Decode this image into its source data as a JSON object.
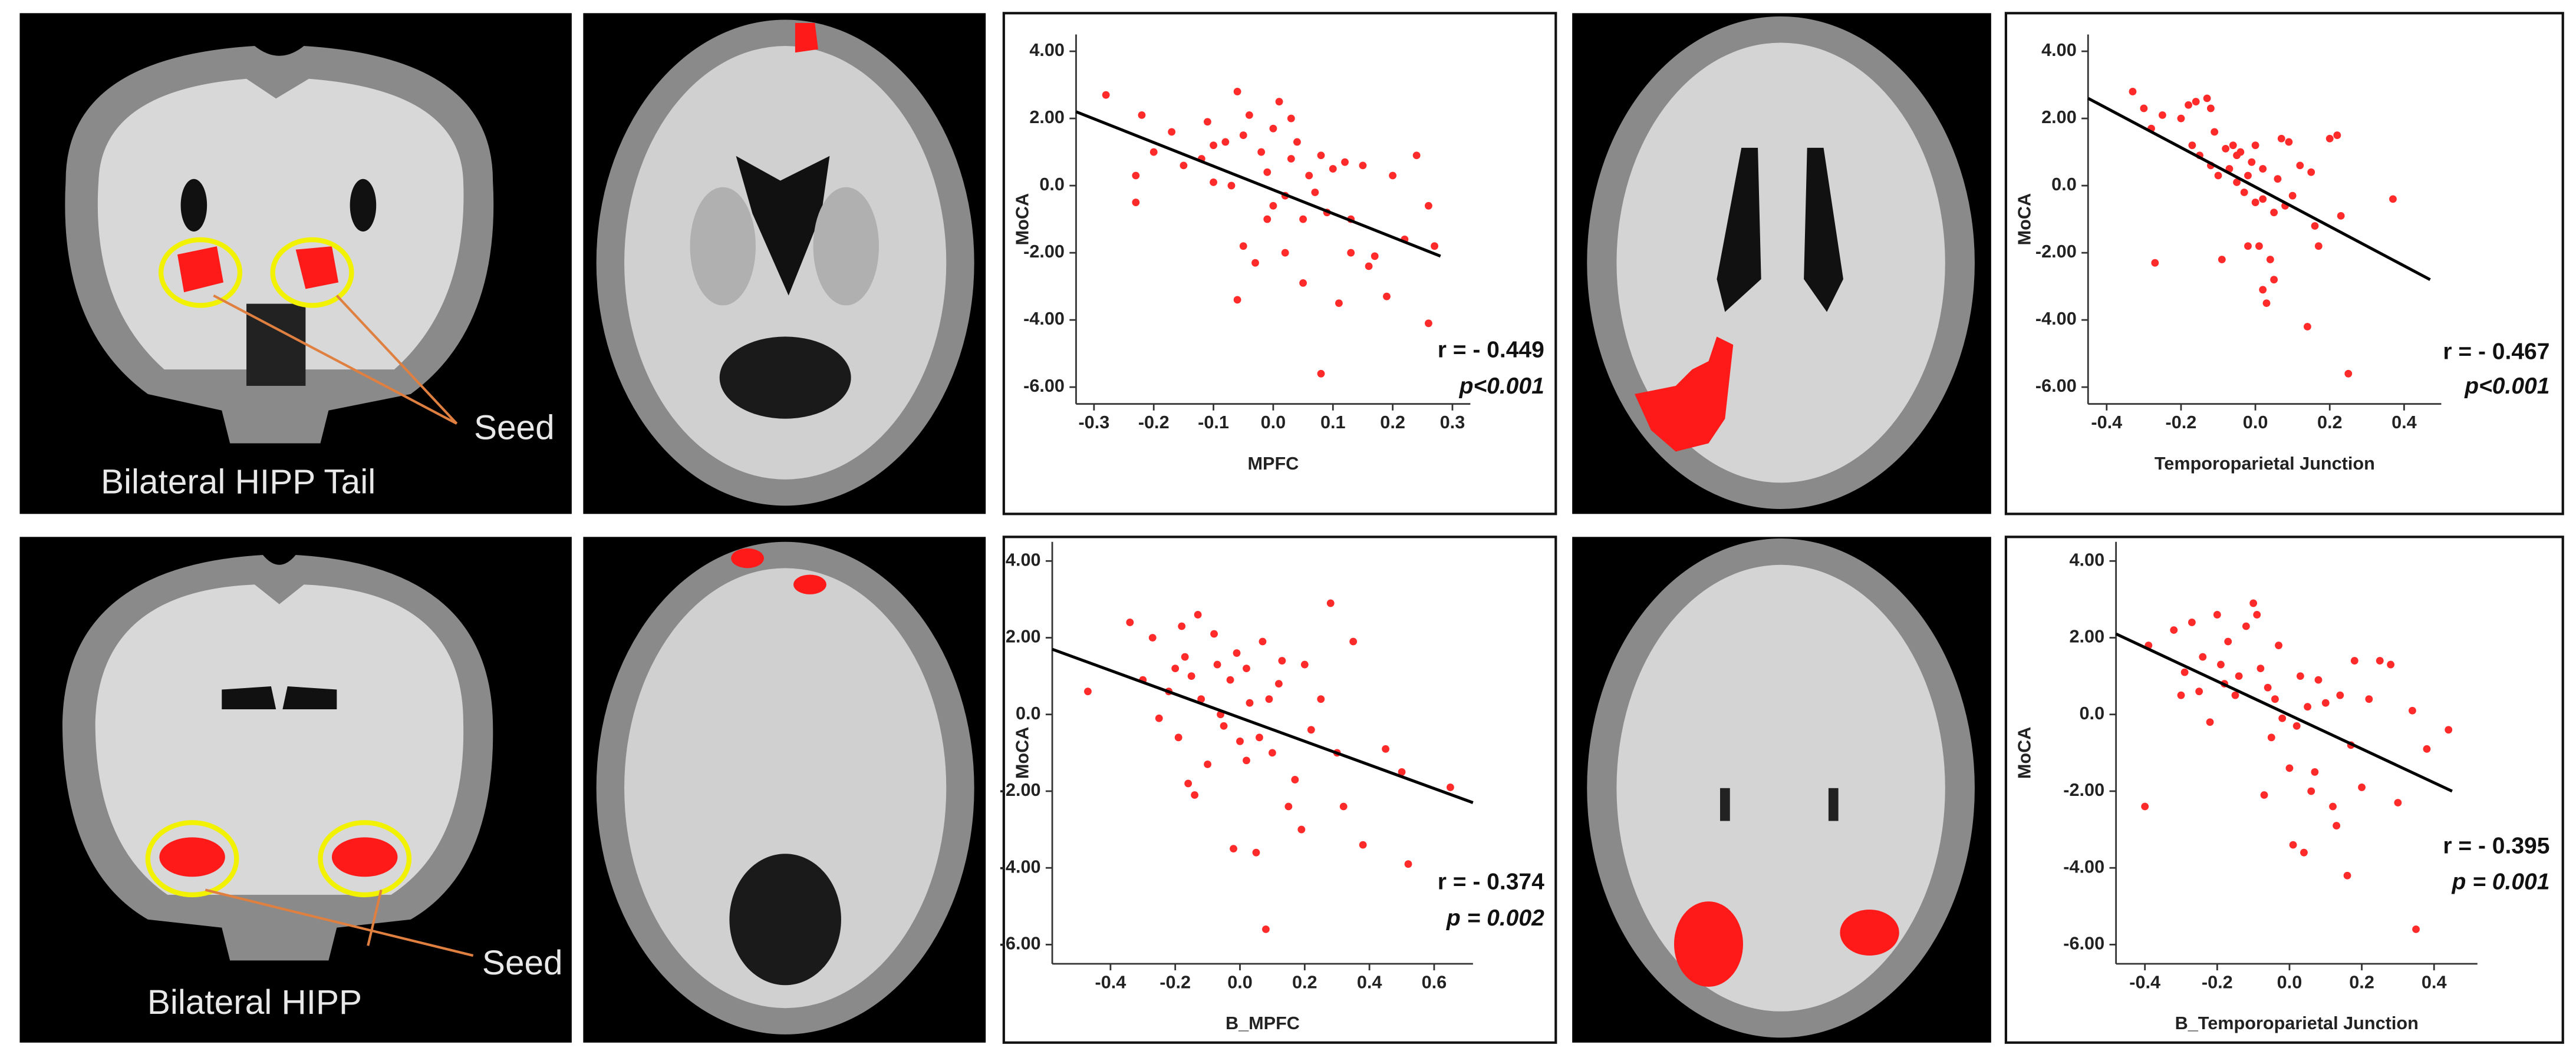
{
  "brain_labels": [
    {
      "title": "Bilateral HIPP Tail",
      "seed": "Seed"
    },
    {
      "title": "Bilateral HIPP",
      "seed": "Seed"
    }
  ],
  "chart_data": [
    {
      "type": "scatter",
      "x_label": "MPFC",
      "y_label": "MoCA",
      "color": "#ff2a2a",
      "annotations": [
        "r = - 0.449",
        "p<0.001"
      ],
      "xlim": [
        -0.33,
        0.33
      ],
      "ylim": [
        -6.5,
        4.5
      ],
      "xticks": [
        -0.3,
        -0.2,
        -0.1,
        {
          "value": 0,
          "label": "0.0"
        },
        0.1,
        0.2,
        0.3
      ],
      "yticks": [
        {
          "value": 4,
          "label": "4.00"
        },
        {
          "value": 2,
          "label": "2.00"
        },
        {
          "value": 0,
          "label": "0.0"
        },
        {
          "value": -2,
          "label": "-2.00"
        },
        {
          "value": -4,
          "label": "-4.00"
        },
        {
          "value": -6,
          "label": "-6.00"
        }
      ],
      "x": [
        -0.28,
        -0.22,
        -0.23,
        -0.23,
        -0.2,
        -0.17,
        -0.15,
        -0.12,
        -0.11,
        -0.1,
        -0.1,
        -0.08,
        -0.07,
        -0.06,
        -0.05,
        -0.05,
        -0.06,
        -0.04,
        -0.03,
        -0.02,
        -0.01,
        0.0,
        0.0,
        0.01,
        0.02,
        0.02,
        0.03,
        0.03,
        0.04,
        0.05,
        0.05,
        0.06,
        0.07,
        0.08,
        0.08,
        0.09,
        0.1,
        0.11,
        0.12,
        0.13,
        0.15,
        0.16,
        0.17,
        0.19,
        0.2,
        0.22,
        0.24,
        0.26,
        0.27,
        0.26,
        0.13,
        -0.01
      ],
      "values": [
        2.7,
        2.1,
        0.3,
        -0.5,
        1.0,
        1.6,
        0.6,
        0.8,
        1.9,
        1.2,
        0.1,
        1.3,
        0.0,
        2.8,
        1.5,
        -1.8,
        -3.4,
        2.1,
        -2.3,
        1.0,
        0.4,
        1.7,
        -0.6,
        2.5,
        -0.3,
        -2.0,
        2.0,
        0.8,
        1.3,
        -1.0,
        -2.9,
        0.3,
        -0.2,
        -5.6,
        0.9,
        -0.8,
        0.5,
        -3.5,
        0.7,
        -1.0,
        0.6,
        -2.4,
        -2.1,
        -3.3,
        0.3,
        -1.6,
        0.9,
        -0.6,
        -1.8,
        -4.1,
        -2.0,
        -1.0
      ],
      "trend": {
        "color": "#000000",
        "x": [
          -0.33,
          0.28
        ],
        "values": [
          2.2,
          -2.1
        ]
      }
    },
    {
      "type": "scatter",
      "x_label": "Temporoparietal Junction",
      "y_label": "MoCA",
      "color": "#ff2a2a",
      "annotations": [
        "r = - 0.467",
        "p<0.001"
      ],
      "xlim": [
        -0.45,
        0.5
      ],
      "ylim": [
        -6.5,
        4.5
      ],
      "xticks": [
        -0.4,
        -0.2,
        {
          "value": 0,
          "label": "0.0"
        },
        0.2,
        0.4
      ],
      "yticks": [
        {
          "value": 4,
          "label": "4.00"
        },
        {
          "value": 2,
          "label": "2.00"
        },
        {
          "value": 0,
          "label": "0.0"
        },
        {
          "value": -2,
          "label": "-2.00"
        },
        {
          "value": -4,
          "label": "-4.00"
        },
        {
          "value": -6,
          "label": "-6.00"
        }
      ],
      "x": [
        -0.33,
        -0.3,
        -0.28,
        -0.27,
        -0.25,
        -0.2,
        -0.18,
        -0.17,
        -0.16,
        -0.15,
        -0.13,
        -0.12,
        -0.12,
        -0.11,
        -0.1,
        -0.09,
        -0.08,
        -0.07,
        -0.06,
        -0.05,
        -0.04,
        -0.03,
        -0.02,
        -0.02,
        -0.01,
        0.0,
        0.0,
        0.01,
        0.02,
        0.02,
        0.03,
        0.04,
        0.05,
        0.05,
        0.06,
        0.07,
        0.08,
        0.09,
        0.1,
        0.12,
        0.14,
        0.15,
        0.16,
        0.17,
        0.2,
        0.22,
        0.23,
        0.25,
        0.37,
        0.02,
        -0.05
      ],
      "values": [
        2.8,
        2.3,
        1.7,
        -2.3,
        2.1,
        2.0,
        2.4,
        1.2,
        2.5,
        0.9,
        2.6,
        2.3,
        0.6,
        1.6,
        0.3,
        -2.2,
        1.1,
        0.5,
        1.2,
        0.9,
        1.0,
        -0.2,
        0.3,
        -1.8,
        0.7,
        1.2,
        -0.5,
        -1.8,
        0.5,
        -3.1,
        -3.5,
        -2.2,
        -0.8,
        -2.8,
        0.2,
        1.4,
        -0.6,
        1.3,
        -0.3,
        0.6,
        -4.2,
        0.4,
        -1.2,
        -1.8,
        1.4,
        1.5,
        -0.9,
        -5.6,
        -0.4,
        -0.4,
        0.1
      ],
      "trend": {
        "color": "#000000",
        "x": [
          -0.45,
          0.47
        ],
        "values": [
          2.6,
          -2.8
        ]
      }
    },
    {
      "type": "scatter",
      "x_label": "B_MPFC",
      "y_label": "MoCA",
      "color": "#ff2a2a",
      "annotations": [
        "r = - 0.374",
        "p = 0.002"
      ],
      "xlim": [
        -0.58,
        0.72
      ],
      "ylim": [
        -6.5,
        4.5
      ],
      "xticks": [
        -0.4,
        -0.2,
        {
          "value": 0,
          "label": "0.0"
        },
        0.2,
        0.4,
        0.6
      ],
      "yticks": [
        {
          "value": 4,
          "label": "4.00"
        },
        {
          "value": 2,
          "label": "2.00"
        },
        {
          "value": 0,
          "label": "0.0"
        },
        {
          "value": -2,
          "label": "-2.00"
        },
        {
          "value": -4,
          "label": "-4.00"
        },
        {
          "value": -6,
          "label": "-6.00"
        }
      ],
      "x": [
        -0.47,
        -0.34,
        -0.3,
        -0.27,
        -0.25,
        -0.22,
        -0.2,
        -0.19,
        -0.18,
        -0.17,
        -0.16,
        -0.15,
        -0.14,
        -0.13,
        -0.12,
        -0.1,
        -0.08,
        -0.07,
        -0.05,
        -0.03,
        -0.02,
        -0.01,
        0.0,
        0.02,
        0.03,
        0.05,
        0.06,
        0.07,
        0.08,
        0.09,
        0.1,
        0.12,
        0.13,
        0.15,
        0.17,
        0.19,
        0.2,
        0.22,
        0.25,
        0.28,
        0.3,
        0.32,
        0.35,
        0.38,
        0.45,
        0.5,
        0.52,
        0.65,
        0.02,
        -0.06
      ],
      "values": [
        0.6,
        2.4,
        0.9,
        2.0,
        -0.1,
        0.6,
        1.2,
        -0.6,
        2.3,
        1.5,
        -1.8,
        1.0,
        -2.1,
        2.6,
        0.4,
        -1.3,
        2.1,
        1.3,
        -0.3,
        0.9,
        -3.5,
        1.6,
        -0.7,
        1.2,
        0.3,
        -3.6,
        -0.6,
        1.9,
        -5.6,
        0.4,
        -1.0,
        0.8,
        1.4,
        -2.4,
        -1.7,
        -3.0,
        1.3,
        -0.4,
        0.4,
        2.9,
        -1.0,
        -2.4,
        1.9,
        -3.4,
        -0.9,
        -1.5,
        -3.9,
        -1.9,
        -1.2,
        0.0
      ],
      "trend": {
        "color": "#000000",
        "x": [
          -0.58,
          0.72
        ],
        "values": [
          1.7,
          -2.3
        ]
      }
    },
    {
      "type": "scatter",
      "x_label": "B_Temporoparietal Junction",
      "y_label": "MoCA",
      "color": "#ff2a2a",
      "annotations": [
        "r = - 0.395",
        "p = 0.001"
      ],
      "xlim": [
        -0.48,
        0.52
      ],
      "ylim": [
        -6.5,
        4.5
      ],
      "xticks": [
        -0.4,
        -0.2,
        {
          "value": 0,
          "label": "0.0"
        },
        0.2,
        0.4
      ],
      "yticks": [
        {
          "value": 4,
          "label": "4.00"
        },
        {
          "value": 2,
          "label": "2.00"
        },
        {
          "value": 0,
          "label": "0.0"
        },
        {
          "value": -2,
          "label": "-2.00"
        },
        {
          "value": -4,
          "label": "-4.00"
        },
        {
          "value": -6,
          "label": "-6.00"
        }
      ],
      "x": [
        -0.4,
        -0.39,
        -0.32,
        -0.3,
        -0.29,
        -0.27,
        -0.25,
        -0.24,
        -0.22,
        -0.2,
        -0.19,
        -0.18,
        -0.17,
        -0.15,
        -0.14,
        -0.12,
        -0.1,
        -0.09,
        -0.08,
        -0.07,
        -0.06,
        -0.05,
        -0.04,
        -0.03,
        -0.02,
        0.0,
        0.01,
        0.02,
        0.03,
        0.04,
        0.05,
        0.06,
        0.07,
        0.08,
        0.1,
        0.12,
        0.13,
        0.14,
        0.16,
        0.17,
        0.18,
        0.2,
        0.22,
        0.25,
        0.28,
        0.3,
        0.34,
        0.35,
        0.38,
        0.44
      ],
      "values": [
        -2.4,
        1.8,
        2.2,
        0.5,
        1.1,
        2.4,
        0.6,
        1.5,
        -0.2,
        2.6,
        1.3,
        0.8,
        1.9,
        0.5,
        1.0,
        2.3,
        2.9,
        2.6,
        1.2,
        -2.1,
        0.7,
        -0.6,
        0.4,
        1.8,
        -0.1,
        -1.4,
        -3.4,
        -0.3,
        1.0,
        -3.6,
        0.2,
        -2.0,
        -1.5,
        0.9,
        0.3,
        -2.4,
        -2.9,
        0.5,
        -4.2,
        -0.8,
        1.4,
        -1.9,
        0.4,
        1.4,
        1.3,
        -2.3,
        0.1,
        -5.6,
        -0.9,
        -0.4
      ],
      "trend": {
        "color": "#000000",
        "x": [
          -0.48,
          0.45
        ],
        "values": [
          2.1,
          -2.0
        ]
      }
    }
  ]
}
